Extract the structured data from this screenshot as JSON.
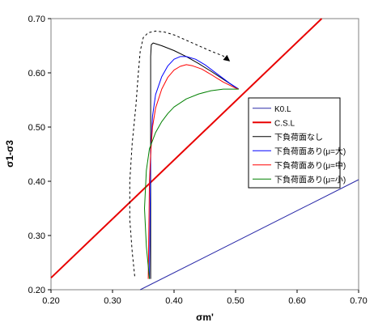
{
  "chart_data": {
    "type": "line",
    "title": "",
    "xlabel": "σm'",
    "ylabel": "σ1-σ3",
    "xlim": [
      0.2,
      0.7
    ],
    "ylim": [
      0.2,
      0.7
    ],
    "x_ticks": [
      "0.20",
      "0.30",
      "0.40",
      "0.50",
      "0.60",
      "0.70"
    ],
    "y_ticks": [
      "0.20",
      "0.30",
      "0.40",
      "0.50",
      "0.60",
      "0.70"
    ],
    "grid": false,
    "legend_position": "right",
    "series": [
      {
        "name": "K0.L",
        "color": "#2a2aa8",
        "width": 1,
        "x": [
          0.345,
          0.7
        ],
        "y": [
          0.2,
          0.403
        ]
      },
      {
        "name": "C.S.L",
        "color": "#e80000",
        "width": 2,
        "x": [
          0.2,
          0.64
        ],
        "y": [
          0.222,
          0.7
        ]
      },
      {
        "name": "下負荷面なし",
        "color": "#000000",
        "width": 1,
        "x": [
          0.362,
          0.362,
          0.362,
          0.362,
          0.363,
          0.366,
          0.38,
          0.4,
          0.42,
          0.44,
          0.46,
          0.48,
          0.495,
          0.505
        ],
        "y": [
          0.22,
          0.4,
          0.55,
          0.63,
          0.652,
          0.655,
          0.65,
          0.641,
          0.63,
          0.617,
          0.603,
          0.588,
          0.577,
          0.57
        ]
      },
      {
        "name": "下負荷面あり(μ=大)",
        "color": "#0000ff",
        "width": 1,
        "x": [
          0.36,
          0.362,
          0.365,
          0.37,
          0.38,
          0.39,
          0.4,
          0.41,
          0.42,
          0.435,
          0.45,
          0.47,
          0.49,
          0.505
        ],
        "y": [
          0.22,
          0.45,
          0.52,
          0.56,
          0.593,
          0.613,
          0.625,
          0.63,
          0.63,
          0.625,
          0.615,
          0.598,
          0.581,
          0.57
        ]
      },
      {
        "name": "下負荷面あり(μ=中)",
        "color": "#ff0000",
        "width": 1,
        "x": [
          0.358,
          0.36,
          0.362,
          0.365,
          0.37,
          0.38,
          0.39,
          0.4,
          0.41,
          0.42,
          0.43,
          0.445,
          0.46,
          0.48,
          0.5,
          0.505
        ],
        "y": [
          0.22,
          0.4,
          0.45,
          0.5,
          0.535,
          0.57,
          0.592,
          0.605,
          0.612,
          0.615,
          0.613,
          0.607,
          0.597,
          0.583,
          0.572,
          0.57
        ]
      },
      {
        "name": "下負荷面あり(μ=小)",
        "color": "#008000",
        "width": 1,
        "x": [
          0.36,
          0.355,
          0.352,
          0.355,
          0.36,
          0.37,
          0.38,
          0.39,
          0.4,
          0.42,
          0.44,
          0.46,
          0.48,
          0.505
        ],
        "y": [
          0.22,
          0.28,
          0.35,
          0.42,
          0.46,
          0.49,
          0.51,
          0.525,
          0.537,
          0.552,
          0.561,
          0.567,
          0.57,
          0.57
        ]
      }
    ],
    "annotations": [
      {
        "type": "dashed-arrow",
        "color": "#000000",
        "x": [
          0.336,
          0.332,
          0.328,
          0.328,
          0.332,
          0.338,
          0.342,
          0.345,
          0.35,
          0.358,
          0.37,
          0.385,
          0.4,
          0.42,
          0.44,
          0.46,
          0.48,
          0.49
        ],
        "y": [
          0.225,
          0.27,
          0.33,
          0.4,
          0.47,
          0.54,
          0.6,
          0.64,
          0.665,
          0.674,
          0.677,
          0.675,
          0.67,
          0.66,
          0.65,
          0.64,
          0.631,
          0.622
        ]
      }
    ]
  }
}
